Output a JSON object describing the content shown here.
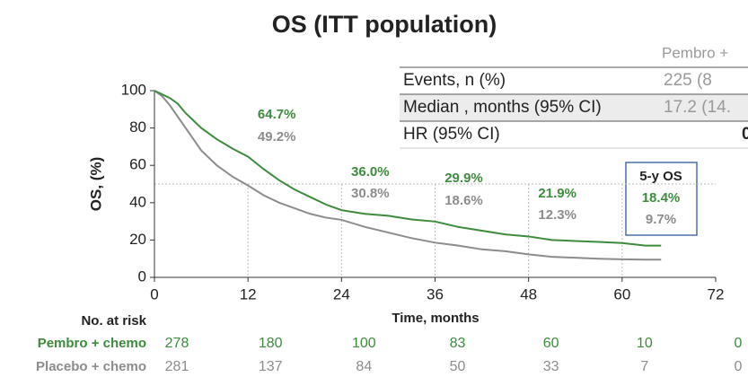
{
  "chart_data": {
    "type": "line",
    "title": "OS (ITT population)",
    "xlabel": "Time, months",
    "ylabel": "OS, (%)",
    "xlim": [
      0,
      72
    ],
    "xticks": [
      0,
      12,
      24,
      36,
      48,
      60,
      72
    ],
    "ylim": [
      0,
      100
    ],
    "yticks": [
      0,
      20,
      40,
      60,
      80,
      100
    ],
    "hline": 50,
    "x": [
      0,
      1,
      2,
      3,
      4,
      5,
      6,
      8,
      10,
      12,
      14,
      16,
      18,
      20,
      22,
      24,
      27,
      30,
      33,
      36,
      39,
      42,
      45,
      48,
      51,
      54,
      57,
      60,
      63,
      65
    ],
    "series": [
      {
        "name": "Pembro + chemo",
        "color": "#3d8b3d",
        "values": [
          100,
          98,
          96,
          93,
          88,
          84,
          80,
          74,
          69,
          64.7,
          58,
          52,
          47,
          43,
          39,
          36,
          34,
          33,
          31,
          29.9,
          27,
          25,
          23,
          21.9,
          20,
          19.5,
          19,
          18.4,
          17,
          17
        ],
        "at_risk": [
          278,
          180,
          100,
          83,
          60,
          10,
          0
        ]
      },
      {
        "name": "Placebo + chemo",
        "color": "#8c8c8c",
        "values": [
          100,
          97,
          92,
          86,
          80,
          74,
          68,
          60,
          54,
          49.2,
          44,
          40,
          37,
          34,
          32,
          30.8,
          27,
          24,
          21,
          18.6,
          17,
          15,
          14,
          12.3,
          11,
          10.5,
          10,
          9.7,
          9.5,
          9.5
        ],
        "at_risk": [
          281,
          137,
          84,
          50,
          33,
          7,
          0
        ]
      }
    ],
    "at_risk_title": "No. at risk",
    "annotations": [
      {
        "x": 12,
        "texts": [
          "64.7%",
          "49.2%"
        ]
      },
      {
        "x": 24,
        "texts": [
          "36.0%",
          "30.8%"
        ]
      },
      {
        "x": 36,
        "texts": [
          "29.9%",
          "18.6%"
        ]
      },
      {
        "x": 48,
        "texts": [
          "21.9%",
          "12.3%"
        ]
      }
    ],
    "box": {
      "title": "5-y OS",
      "texts": [
        "18.4%",
        "9.7%"
      ]
    },
    "table": {
      "header": "Pembro +",
      "rows": [
        [
          "Events, n (%)",
          "225 (8"
        ],
        [
          "Median , months (95% CI)",
          "17.2 (14."
        ],
        [
          "HR (95% CI)",
          "0"
        ]
      ]
    }
  }
}
